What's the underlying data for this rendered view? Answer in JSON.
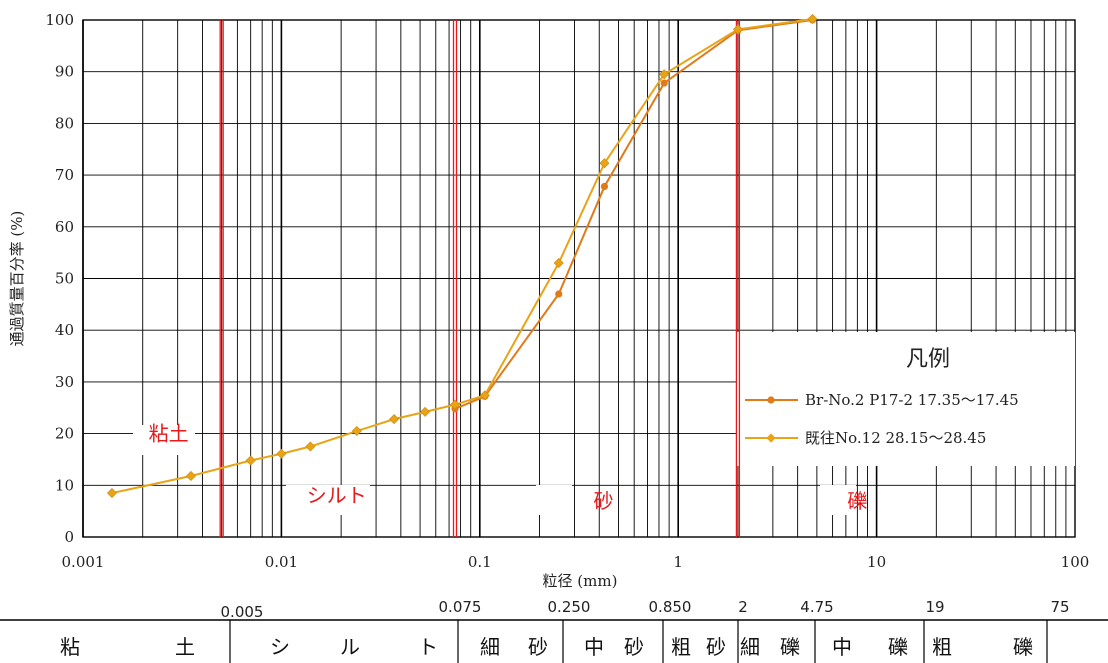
{
  "chart_data": {
    "type": "line",
    "title": "",
    "xlabel": "粒径 (mm)",
    "ylabel": "通過質量百分率 (%)",
    "xscale": "log",
    "xlim": [
      0.001,
      100
    ],
    "ylim": [
      0,
      100
    ],
    "x_tick_labels": [
      "0.001",
      "0.01",
      "0.1",
      "1",
      "10",
      "100"
    ],
    "y_tick_labels": [
      "0",
      "10",
      "20",
      "30",
      "40",
      "50",
      "60",
      "70",
      "80",
      "90",
      "100"
    ],
    "grid": true,
    "legend_title": "凡例",
    "legend_position": "right",
    "series": [
      {
        "name": "Br-No.2 P17-2 17.35～17.45",
        "marker": "circle",
        "color": "#e07b1a",
        "points": [
          [
            0.075,
            24.8
          ],
          [
            0.106,
            27.2
          ],
          [
            0.25,
            47
          ],
          [
            0.425,
            67.8
          ],
          [
            0.85,
            87.8
          ],
          [
            2,
            98
          ],
          [
            4.75,
            100
          ]
        ]
      },
      {
        "name": "既往No.12 28.15～28.45",
        "marker": "diamond",
        "color": "#e8a317",
        "points": [
          [
            0.0014,
            8.5
          ],
          [
            0.0035,
            11.8
          ],
          [
            0.007,
            14.8
          ],
          [
            0.01,
            16.1
          ],
          [
            0.014,
            17.5
          ],
          [
            0.024,
            20.5
          ],
          [
            0.037,
            22.8
          ],
          [
            0.053,
            24.2
          ],
          [
            0.075,
            25.6
          ],
          [
            0.106,
            27.4
          ],
          [
            0.25,
            53
          ],
          [
            0.425,
            72.3
          ],
          [
            0.85,
            89.5
          ],
          [
            2,
            98.2
          ],
          [
            4.75,
            100.2
          ]
        ]
      }
    ],
    "boundaries": [
      0.005,
      0.075,
      2
    ],
    "region_labels": [
      {
        "text": "粘土",
        "x": 0.0027,
        "y": 20
      },
      {
        "text": "シルト",
        "x": 0.019,
        "y": 8
      },
      {
        "text": "砂",
        "x": 0.42,
        "y": 7
      },
      {
        "text": "礫",
        "x": 8,
        "y": 7
      }
    ]
  },
  "classification": {
    "boundary_labels": [
      {
        "text": "0.005",
        "value": 0.005
      },
      {
        "text": "0.075",
        "value": 0.075
      },
      {
        "text": "0.250",
        "value": 0.25
      },
      {
        "text": "0.850",
        "value": 0.85
      },
      {
        "text": "2",
        "value": 2
      },
      {
        "text": "4.75",
        "value": 4.75
      },
      {
        "text": "19",
        "value": 19
      },
      {
        "text": "75",
        "value": 75
      }
    ],
    "cells": [
      {
        "chars": [
          "粘",
          "土"
        ],
        "from": 0.001,
        "to": 0.005
      },
      {
        "chars": [
          "シ",
          "ル",
          "ト"
        ],
        "from": 0.005,
        "to": 0.075
      },
      {
        "chars": [
          "細",
          "砂"
        ],
        "from": 0.075,
        "to": 0.25
      },
      {
        "chars": [
          "中",
          "砂"
        ],
        "from": 0.25,
        "to": 0.85
      },
      {
        "chars": [
          "粗",
          "砂"
        ],
        "from": 0.85,
        "to": 2
      },
      {
        "chars": [
          "細",
          "礫"
        ],
        "from": 2,
        "to": 4.75
      },
      {
        "chars": [
          "中",
          "礫"
        ],
        "from": 4.75,
        "to": 19
      },
      {
        "chars": [
          "粗",
          "礫"
        ],
        "from": 19,
        "to": 75
      }
    ]
  }
}
